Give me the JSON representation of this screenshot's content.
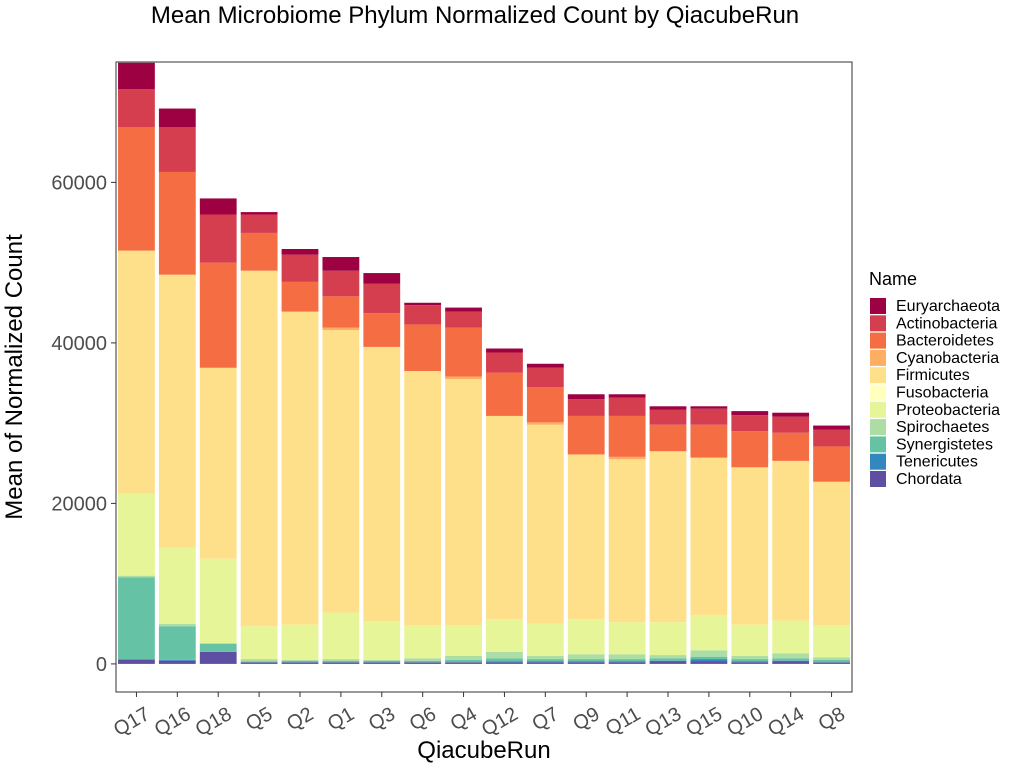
{
  "chart_data": {
    "type": "bar",
    "stacked": true,
    "title": "Mean Microbiome Phylum Normalized Count by QiacubeRun",
    "xlabel": "QiacubeRun",
    "ylabel": "Mean of Normalized Count",
    "ylim": [
      -3500,
      75000
    ],
    "yticks": [
      0,
      20000,
      40000,
      60000
    ],
    "ytick_labels": [
      "0",
      "20000",
      "40000",
      "60000"
    ],
    "grid": false,
    "legend_title": "Name",
    "legend_position": "right",
    "categories": [
      "Q17",
      "Q16",
      "Q18",
      "Q5",
      "Q2",
      "Q1",
      "Q3",
      "Q6",
      "Q4",
      "Q12",
      "Q7",
      "Q9",
      "Q11",
      "Q13",
      "Q15",
      "Q10",
      "Q14",
      "Q8"
    ],
    "series": [
      {
        "name": "Chordata",
        "color": "#5E4FA2",
        "values": [
          500,
          400,
          1500,
          200,
          200,
          200,
          200,
          200,
          200,
          200,
          200,
          200,
          200,
          300,
          300,
          200,
          300,
          200
        ]
      },
      {
        "name": "Tenericutes",
        "color": "#3288BD",
        "values": [
          100,
          100,
          0,
          0,
          0,
          0,
          0,
          0,
          0,
          100,
          100,
          100,
          100,
          100,
          300,
          100,
          100,
          0
        ]
      },
      {
        "name": "Synergistetes",
        "color": "#66C2A5",
        "values": [
          10200,
          4200,
          1000,
          100,
          200,
          200,
          200,
          200,
          300,
          400,
          300,
          300,
          300,
          300,
          300,
          300,
          300,
          300
        ]
      },
      {
        "name": "Spirochaetes",
        "color": "#ABDDA4",
        "values": [
          200,
          300,
          100,
          300,
          100,
          200,
          100,
          300,
          500,
          800,
          400,
          600,
          600,
          400,
          800,
          400,
          600,
          300
        ]
      },
      {
        "name": "Proteobacteria",
        "color": "#E6F598",
        "values": [
          10200,
          9500,
          10500,
          4100,
          4400,
          5800,
          4800,
          4100,
          3800,
          4100,
          4000,
          4400,
          4000,
          4100,
          4400,
          3900,
          4100,
          4000
        ]
      },
      {
        "name": "Fusobacteria",
        "color": "#FFFFBF",
        "values": [
          0,
          0,
          0,
          0,
          0,
          0,
          0,
          0,
          0,
          0,
          0,
          0,
          0,
          0,
          0,
          0,
          0,
          0
        ]
      },
      {
        "name": "Firmicutes",
        "color": "#FEE08B",
        "values": [
          30300,
          34000,
          23800,
          44300,
          39000,
          35200,
          34200,
          31700,
          30700,
          25300,
          24800,
          20500,
          20300,
          21300,
          19600,
          19600,
          19900,
          17900
        ]
      },
      {
        "name": "Cyanobacteria",
        "color": "#FDAE61",
        "values": [
          0,
          0,
          0,
          0,
          0,
          300,
          0,
          0,
          300,
          0,
          300,
          0,
          300,
          0,
          0,
          0,
          0,
          0
        ]
      },
      {
        "name": "Bacteroidetes",
        "color": "#F46D43",
        "values": [
          15400,
          12800,
          13100,
          4700,
          3700,
          3900,
          4200,
          5800,
          6100,
          5400,
          4400,
          4800,
          5100,
          3300,
          4100,
          4500,
          3500,
          4400
        ]
      },
      {
        "name": "Actinobacteria",
        "color": "#D53E4F",
        "values": [
          4700,
          5600,
          6000,
          2300,
          3400,
          3200,
          3700,
          2400,
          2000,
          2500,
          2400,
          2100,
          2300,
          1900,
          2000,
          2000,
          2000,
          2100
        ]
      },
      {
        "name": "Euryarchaeota",
        "color": "#9E0142",
        "values": [
          3300,
          2300,
          2000,
          300,
          700,
          1700,
          1300,
          300,
          500,
          500,
          500,
          600,
          400,
          400,
          300,
          500,
          500,
          500
        ]
      }
    ],
    "legend_order": [
      "Euryarchaeota",
      "Actinobacteria",
      "Bacteroidetes",
      "Cyanobacteria",
      "Firmicutes",
      "Fusobacteria",
      "Proteobacteria",
      "Spirochaetes",
      "Synergistetes",
      "Tenericutes",
      "Chordata"
    ]
  }
}
